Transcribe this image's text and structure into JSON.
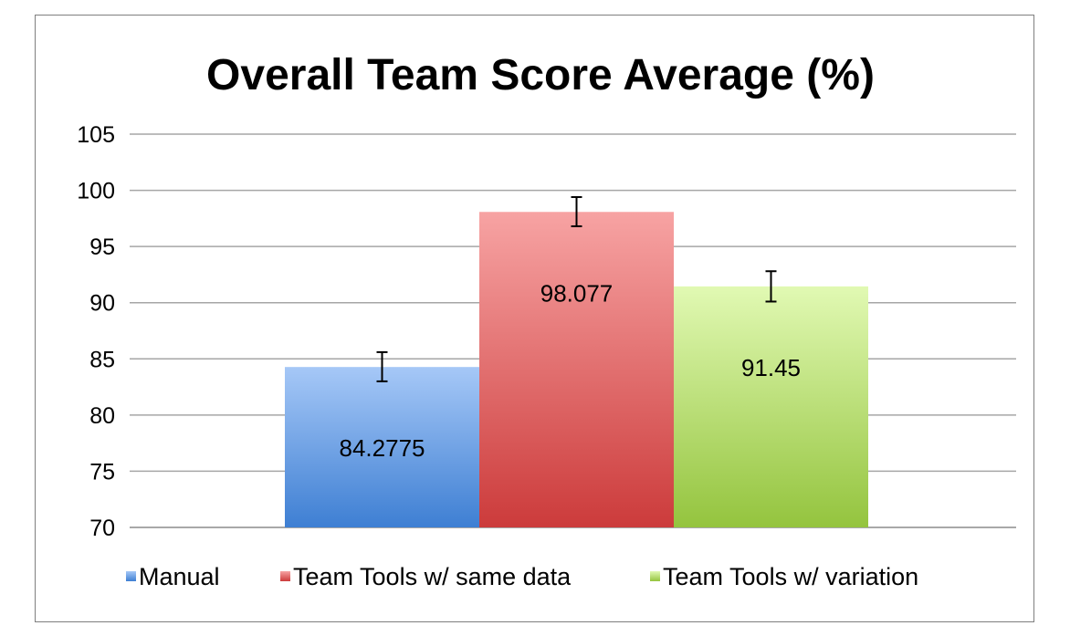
{
  "chart_data": {
    "type": "bar",
    "title": "Overall Team Score Average (%)",
    "xlabel": "",
    "ylabel": "",
    "ylim": [
      70,
      105
    ],
    "yticks": [
      70,
      75,
      80,
      85,
      90,
      95,
      100,
      105
    ],
    "grid": true,
    "legend_position": "bottom",
    "categories": [
      "Manual",
      "Team Tools w/ same data",
      "Team Tools w/ variation"
    ],
    "values": [
      84.2775,
      98.077,
      91.45
    ],
    "data_labels": [
      "84.2775",
      "98.077",
      "91.45"
    ],
    "error_bars": [
      {
        "low": 83.0,
        "high": 85.6
      },
      {
        "low": 96.8,
        "high": 99.4
      },
      {
        "low": 90.1,
        "high": 92.8
      }
    ],
    "colors": [
      {
        "top": "#a6c8f7",
        "bottom": "#3e7fd3"
      },
      {
        "top": "#f7a3a3",
        "bottom": "#cc3b3b"
      },
      {
        "top": "#e1f9b3",
        "bottom": "#94c43e"
      }
    ]
  }
}
